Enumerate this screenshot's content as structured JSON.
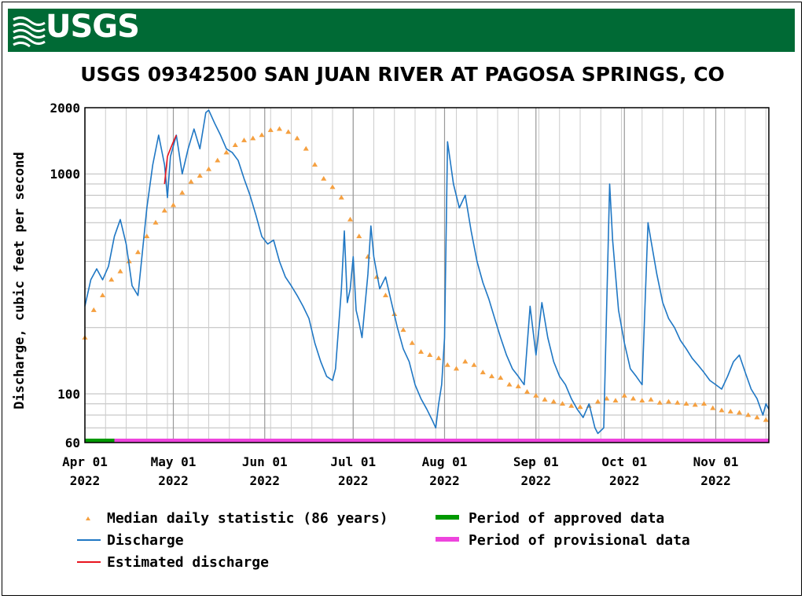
{
  "header": {
    "logo_text": "USGS",
    "banner_color": "#006a35"
  },
  "chart_data": {
    "type": "line",
    "title": "USGS 09342500 SAN JUAN RIVER AT PAGOSA SPRINGS, CO",
    "xlabel": "",
    "ylabel": "Discharge, cubic feet per second",
    "yscale": "log",
    "ylim": [
      60,
      2000
    ],
    "xlim": [
      "2022-04-01",
      "2022-11-19"
    ],
    "y_tick_labels": [
      {
        "value": 2000,
        "label": "2000"
      },
      {
        "value": 1000,
        "label": "1000"
      },
      {
        "value": 100,
        "label": "100"
      },
      {
        "value": 60,
        "label": "60"
      }
    ],
    "x_tick_labels": [
      {
        "date": "2022-04-01",
        "line1": "Apr 01",
        "line2": "2022"
      },
      {
        "date": "2022-05-01",
        "line1": "May 01",
        "line2": "2022"
      },
      {
        "date": "2022-06-01",
        "line1": "Jun 01",
        "line2": "2022"
      },
      {
        "date": "2022-07-01",
        "line1": "Jul 01",
        "line2": "2022"
      },
      {
        "date": "2022-08-01",
        "line1": "Aug 01",
        "line2": "2022"
      },
      {
        "date": "2022-09-01",
        "line1": "Sep 01",
        "line2": "2022"
      },
      {
        "date": "2022-10-01",
        "line1": "Oct 01",
        "line2": "2022"
      },
      {
        "date": "2022-11-01",
        "line1": "Nov 01",
        "line2": "2022"
      }
    ],
    "grid": true,
    "series": [
      {
        "name": "Discharge",
        "color": "#1f77c4",
        "points": [
          [
            "2022-04-01",
            250
          ],
          [
            "2022-04-03",
            330
          ],
          [
            "2022-04-05",
            370
          ],
          [
            "2022-04-07",
            330
          ],
          [
            "2022-04-09",
            380
          ],
          [
            "2022-04-11",
            520
          ],
          [
            "2022-04-13",
            620
          ],
          [
            "2022-04-15",
            480
          ],
          [
            "2022-04-17",
            310
          ],
          [
            "2022-04-19",
            280
          ],
          [
            "2022-04-20",
            380
          ],
          [
            "2022-04-22",
            700
          ],
          [
            "2022-04-24",
            1100
          ],
          [
            "2022-04-26",
            1500
          ],
          [
            "2022-04-28",
            1100
          ],
          [
            "2022-04-29",
            780
          ],
          [
            "2022-04-30",
            1200
          ],
          [
            "2022-05-02",
            1500
          ],
          [
            "2022-05-04",
            1000
          ],
          [
            "2022-05-06",
            1300
          ],
          [
            "2022-05-08",
            1600
          ],
          [
            "2022-05-10",
            1300
          ],
          [
            "2022-05-12",
            1900
          ],
          [
            "2022-05-13",
            1950
          ],
          [
            "2022-05-15",
            1700
          ],
          [
            "2022-05-17",
            1500
          ],
          [
            "2022-05-19",
            1300
          ],
          [
            "2022-05-21",
            1250
          ],
          [
            "2022-05-23",
            1150
          ],
          [
            "2022-05-25",
            950
          ],
          [
            "2022-05-27",
            800
          ],
          [
            "2022-05-29",
            650
          ],
          [
            "2022-05-31",
            520
          ],
          [
            "2022-06-02",
            480
          ],
          [
            "2022-06-04",
            500
          ],
          [
            "2022-06-06",
            400
          ],
          [
            "2022-06-08",
            340
          ],
          [
            "2022-06-10",
            310
          ],
          [
            "2022-06-12",
            280
          ],
          [
            "2022-06-14",
            250
          ],
          [
            "2022-06-16",
            220
          ],
          [
            "2022-06-18",
            170
          ],
          [
            "2022-06-20",
            140
          ],
          [
            "2022-06-22",
            120
          ],
          [
            "2022-06-24",
            115
          ],
          [
            "2022-06-25",
            130
          ],
          [
            "2022-06-27",
            300
          ],
          [
            "2022-06-28",
            550
          ],
          [
            "2022-06-29",
            260
          ],
          [
            "2022-06-30",
            300
          ],
          [
            "2022-07-01",
            420
          ],
          [
            "2022-07-02",
            240
          ],
          [
            "2022-07-03",
            210
          ],
          [
            "2022-07-04",
            180
          ],
          [
            "2022-07-06",
            350
          ],
          [
            "2022-07-07",
            580
          ],
          [
            "2022-07-08",
            420
          ],
          [
            "2022-07-10",
            300
          ],
          [
            "2022-07-12",
            340
          ],
          [
            "2022-07-14",
            260
          ],
          [
            "2022-07-16",
            200
          ],
          [
            "2022-07-18",
            160
          ],
          [
            "2022-07-20",
            140
          ],
          [
            "2022-07-22",
            110
          ],
          [
            "2022-07-24",
            95
          ],
          [
            "2022-07-26",
            85
          ],
          [
            "2022-07-28",
            75
          ],
          [
            "2022-07-29",
            70
          ],
          [
            "2022-07-30",
            90
          ],
          [
            "2022-07-31",
            110
          ],
          [
            "2022-08-01",
            180
          ],
          [
            "2022-08-02",
            1400
          ],
          [
            "2022-08-04",
            900
          ],
          [
            "2022-08-06",
            700
          ],
          [
            "2022-08-08",
            800
          ],
          [
            "2022-08-10",
            550
          ],
          [
            "2022-08-12",
            400
          ],
          [
            "2022-08-14",
            320
          ],
          [
            "2022-08-16",
            270
          ],
          [
            "2022-08-18",
            220
          ],
          [
            "2022-08-20",
            180
          ],
          [
            "2022-08-22",
            150
          ],
          [
            "2022-08-24",
            130
          ],
          [
            "2022-08-26",
            120
          ],
          [
            "2022-08-28",
            110
          ],
          [
            "2022-08-30",
            250
          ],
          [
            "2022-09-01",
            150
          ],
          [
            "2022-09-03",
            260
          ],
          [
            "2022-09-05",
            180
          ],
          [
            "2022-09-07",
            140
          ],
          [
            "2022-09-09",
            120
          ],
          [
            "2022-09-11",
            110
          ],
          [
            "2022-09-13",
            95
          ],
          [
            "2022-09-15",
            85
          ],
          [
            "2022-09-17",
            78
          ],
          [
            "2022-09-19",
            90
          ],
          [
            "2022-09-21",
            70
          ],
          [
            "2022-09-22",
            66
          ],
          [
            "2022-09-24",
            70
          ],
          [
            "2022-09-26",
            900
          ],
          [
            "2022-09-27",
            500
          ],
          [
            "2022-09-29",
            240
          ],
          [
            "2022-10-01",
            170
          ],
          [
            "2022-10-03",
            130
          ],
          [
            "2022-10-05",
            120
          ],
          [
            "2022-10-07",
            110
          ],
          [
            "2022-10-09",
            600
          ],
          [
            "2022-10-10",
            500
          ],
          [
            "2022-10-12",
            350
          ],
          [
            "2022-10-14",
            260
          ],
          [
            "2022-10-16",
            220
          ],
          [
            "2022-10-18",
            200
          ],
          [
            "2022-10-20",
            175
          ],
          [
            "2022-10-22",
            160
          ],
          [
            "2022-10-24",
            145
          ],
          [
            "2022-10-26",
            135
          ],
          [
            "2022-10-28",
            125
          ],
          [
            "2022-10-30",
            115
          ],
          [
            "2022-11-01",
            110
          ],
          [
            "2022-11-03",
            105
          ],
          [
            "2022-11-05",
            120
          ],
          [
            "2022-11-07",
            140
          ],
          [
            "2022-11-09",
            150
          ],
          [
            "2022-11-11",
            125
          ],
          [
            "2022-11-13",
            105
          ],
          [
            "2022-11-15",
            95
          ],
          [
            "2022-11-17",
            80
          ],
          [
            "2022-11-18",
            90
          ],
          [
            "2022-11-19",
            85
          ]
        ]
      },
      {
        "name": "Estimated discharge",
        "color": "#e8141e",
        "points": [
          [
            "2022-04-28",
            900
          ],
          [
            "2022-04-29",
            1200
          ],
          [
            "2022-04-30",
            1300
          ],
          [
            "2022-05-01",
            1400
          ],
          [
            "2022-05-02",
            1500
          ]
        ]
      },
      {
        "name": "Median daily statistic (86 years)",
        "color": "#f5a040",
        "marker": "triangle",
        "points": [
          [
            "2022-04-01",
            180
          ],
          [
            "2022-04-04",
            240
          ],
          [
            "2022-04-07",
            280
          ],
          [
            "2022-04-10",
            330
          ],
          [
            "2022-04-13",
            360
          ],
          [
            "2022-04-16",
            400
          ],
          [
            "2022-04-19",
            440
          ],
          [
            "2022-04-22",
            520
          ],
          [
            "2022-04-25",
            600
          ],
          [
            "2022-04-28",
            680
          ],
          [
            "2022-05-01",
            720
          ],
          [
            "2022-05-04",
            820
          ],
          [
            "2022-05-07",
            920
          ],
          [
            "2022-05-10",
            980
          ],
          [
            "2022-05-13",
            1050
          ],
          [
            "2022-05-16",
            1150
          ],
          [
            "2022-05-19",
            1250
          ],
          [
            "2022-05-22",
            1350
          ],
          [
            "2022-05-25",
            1420
          ],
          [
            "2022-05-28",
            1450
          ],
          [
            "2022-05-31",
            1500
          ],
          [
            "2022-06-03",
            1580
          ],
          [
            "2022-06-06",
            1600
          ],
          [
            "2022-06-09",
            1550
          ],
          [
            "2022-06-12",
            1450
          ],
          [
            "2022-06-15",
            1300
          ],
          [
            "2022-06-18",
            1100
          ],
          [
            "2022-06-21",
            950
          ],
          [
            "2022-06-24",
            870
          ],
          [
            "2022-06-27",
            780
          ],
          [
            "2022-06-30",
            620
          ],
          [
            "2022-07-03",
            520
          ],
          [
            "2022-07-06",
            420
          ],
          [
            "2022-07-09",
            340
          ],
          [
            "2022-07-12",
            280
          ],
          [
            "2022-07-15",
            230
          ],
          [
            "2022-07-18",
            195
          ],
          [
            "2022-07-21",
            170
          ],
          [
            "2022-07-24",
            155
          ],
          [
            "2022-07-27",
            150
          ],
          [
            "2022-07-30",
            145
          ],
          [
            "2022-08-02",
            135
          ],
          [
            "2022-08-05",
            130
          ],
          [
            "2022-08-08",
            140
          ],
          [
            "2022-08-11",
            135
          ],
          [
            "2022-08-14",
            125
          ],
          [
            "2022-08-17",
            120
          ],
          [
            "2022-08-20",
            118
          ],
          [
            "2022-08-23",
            110
          ],
          [
            "2022-08-26",
            108
          ],
          [
            "2022-08-29",
            102
          ],
          [
            "2022-09-01",
            98
          ],
          [
            "2022-09-04",
            94
          ],
          [
            "2022-09-07",
            92
          ],
          [
            "2022-09-10",
            90
          ],
          [
            "2022-09-13",
            88
          ],
          [
            "2022-09-16",
            87
          ],
          [
            "2022-09-19",
            88
          ],
          [
            "2022-09-22",
            92
          ],
          [
            "2022-09-25",
            95
          ],
          [
            "2022-09-28",
            93
          ],
          [
            "2022-10-01",
            98
          ],
          [
            "2022-10-04",
            95
          ],
          [
            "2022-10-07",
            93
          ],
          [
            "2022-10-10",
            94
          ],
          [
            "2022-10-13",
            91
          ],
          [
            "2022-10-16",
            92
          ],
          [
            "2022-10-19",
            91
          ],
          [
            "2022-10-22",
            90
          ],
          [
            "2022-10-25",
            89
          ],
          [
            "2022-10-28",
            90
          ],
          [
            "2022-10-31",
            86
          ],
          [
            "2022-11-03",
            84
          ],
          [
            "2022-11-06",
            83
          ],
          [
            "2022-11-09",
            82
          ],
          [
            "2022-11-12",
            80
          ],
          [
            "2022-11-15",
            78
          ],
          [
            "2022-11-18",
            76
          ]
        ]
      }
    ],
    "bands": [
      {
        "name": "Period of approved data",
        "color": "#009900",
        "start": "2022-04-01",
        "end": "2022-04-11"
      },
      {
        "name": "Period of provisional data",
        "color": "#ee44dd",
        "start": "2022-04-11",
        "end": "2022-11-19"
      }
    ],
    "legend": {
      "placement": "bottom",
      "items": [
        {
          "label": "Median daily statistic (86 years)",
          "color": "#f5a040",
          "kind": "triangle"
        },
        {
          "label": "Period of approved data",
          "color": "#009900",
          "kind": "bar"
        },
        {
          "label": "Discharge",
          "color": "#1f77c4",
          "kind": "line"
        },
        {
          "label": "Period of provisional data",
          "color": "#ee44dd",
          "kind": "bar"
        },
        {
          "label": "Estimated discharge",
          "color": "#e8141e",
          "kind": "line"
        }
      ]
    }
  }
}
